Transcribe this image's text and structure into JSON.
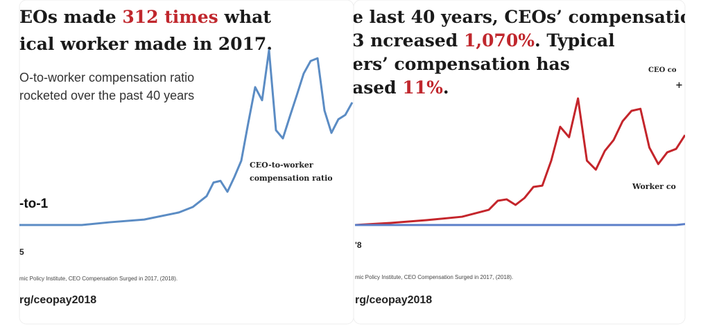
{
  "chart_data": [
    {
      "type": "line",
      "title_lines": [
        [
          "EOs made ",
          "312 times",
          " what"
        ],
        [
          "ical worker made in 2017."
        ]
      ],
      "subtitle_lines": [
        "O-to-worker compensation ratio",
        "rocketed over the past 40 years"
      ],
      "highlight_color": "#c0272d",
      "label": "-to-1",
      "annotations": [
        "CEO-to-worker",
        "compensation ratio"
      ],
      "x": [
        1965,
        1974,
        1978,
        1983,
        1988,
        1990,
        1992,
        1993,
        1994,
        1995,
        1996,
        1997,
        1998,
        1999,
        2000,
        2001,
        2002,
        2003,
        2004,
        2005,
        2006,
        2007,
        2008,
        2009,
        2010,
        2011,
        2012,
        2013
      ],
      "series": [
        {
          "name": "CEO-to-worker compensation ratio",
          "color": "#5b8cc4",
          "values": [
            20,
            20,
            25,
            30,
            43,
            53,
            73,
            98,
            101,
            81,
            108,
            138,
            207,
            273,
            249,
            341,
            194,
            179,
            219,
            258,
            298,
            321,
            326,
            230,
            189,
            214,
            222,
            245
          ]
        }
      ],
      "xlim": [
        1965,
        2013
      ],
      "ylim": [
        20,
        344
      ],
      "xticks": [
        {
          "value": 1965,
          "label": "5"
        }
      ],
      "source": "mic Policy Institute, CEO Compensation Surged in 2017, (2018).",
      "url": "rg/ceopay2018"
    },
    {
      "type": "line",
      "title_lines": [
        [
          "e last 40 years, CEOs’ compensatio"
        ],
        [
          "3 ncreased ",
          "1,070%",
          ". Typical"
        ],
        [
          "ers’ compensation has"
        ],
        [
          "ased ",
          "11%",
          "."
        ]
      ],
      "subtitle_lines": [],
      "highlight_color": "#c0272d",
      "annotations": [
        "CEO co",
        "+",
        "Worker co"
      ],
      "x": [
        1978,
        1982,
        1986,
        1990,
        1993,
        1994,
        1995,
        1996,
        1997,
        1998,
        1999,
        2000,
        2001,
        2002,
        2003,
        2004,
        2005,
        2006,
        2007,
        2008,
        2009,
        2010,
        2011,
        2012,
        2013,
        2014,
        2015
      ],
      "series": [
        {
          "name": "CEO compensation",
          "color": "#c4252b",
          "values": [
            0,
            25,
            57,
            98,
            180,
            287,
            304,
            238,
            320,
            451,
            467,
            763,
            1164,
            1041,
            1500,
            763,
            656,
            877,
            1008,
            1230,
            1353,
            1377,
            918,
            722,
            861,
            902,
            1066
          ]
        },
        {
          "name": "Worker compensation",
          "color": "#5b7fc8",
          "values": [
            0,
            0,
            0,
            0,
            0,
            0,
            0,
            0,
            0,
            0,
            0,
            0,
            0,
            0,
            0,
            0,
            0,
            0,
            0,
            0,
            0,
            0,
            0,
            0,
            0,
            0,
            11
          ]
        }
      ],
      "xlim": [
        1978,
        2015
      ],
      "ylim": [
        0,
        1600
      ],
      "xticks": [
        {
          "value": 1978,
          "label": "'8"
        }
      ],
      "source": "mic Policy Institute, CEO Compensation Surged in 2017, (2018).",
      "url": "rg/ceopay2018"
    }
  ]
}
